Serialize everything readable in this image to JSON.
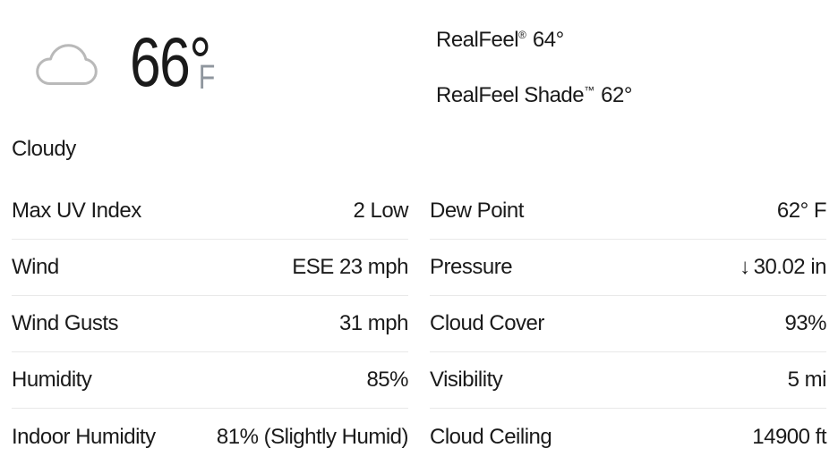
{
  "current": {
    "icon": "cloudy-icon",
    "temperature": "66°",
    "unit": "F",
    "phrase": "Cloudy",
    "realfeel": {
      "label": "RealFeel",
      "mark": "®",
      "value": "64°"
    },
    "realfeel_shade": {
      "label": "RealFeel Shade",
      "mark": "™",
      "value": "62°"
    }
  },
  "details": {
    "left": [
      {
        "key": "max-uv-index",
        "label": "Max UV Index",
        "value": "2 Low"
      },
      {
        "key": "wind",
        "label": "Wind",
        "value": "ESE 23 mph"
      },
      {
        "key": "wind-gusts",
        "label": "Wind Gusts",
        "value": "31 mph"
      },
      {
        "key": "humidity",
        "label": "Humidity",
        "value": "85%"
      },
      {
        "key": "indoor-humidity",
        "label": "Indoor Humidity",
        "value": "81% (Slightly Humid)"
      }
    ],
    "right": [
      {
        "key": "dew-point",
        "label": "Dew Point",
        "value": "62° F"
      },
      {
        "key": "pressure",
        "label": "Pressure",
        "icon": "pressure-falling-arrow",
        "icon_glyph": "↓",
        "value": "30.02 in"
      },
      {
        "key": "cloud-cover",
        "label": "Cloud Cover",
        "value": "93%"
      },
      {
        "key": "visibility",
        "label": "Visibility",
        "value": "5 mi"
      },
      {
        "key": "cloud-ceiling",
        "label": "Cloud Ceiling",
        "value": "14900 ft"
      }
    ]
  },
  "colors": {
    "text": "#1a1a1a",
    "muted_unit": "#8f969e",
    "divider": "#e9e9e9",
    "cloud_icon": "#b9b9b9",
    "background": "#ffffff"
  }
}
